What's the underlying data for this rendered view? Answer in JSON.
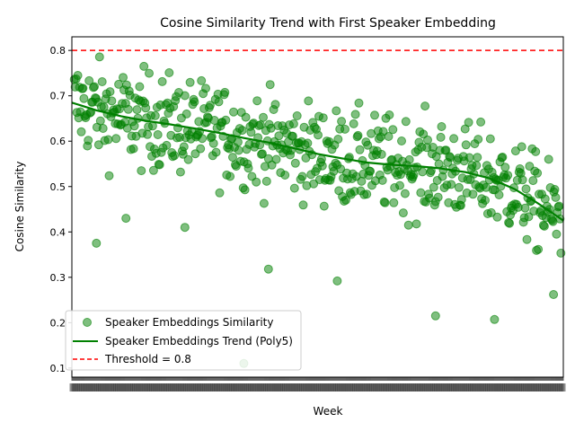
{
  "chart_data": {
    "type": "scatter",
    "title": "Cosine Similarity Trend with First Speaker Embedding",
    "xlabel": "Week",
    "ylabel": "Cosine Similarity",
    "ylim": [
      0.08,
      0.83
    ],
    "yticks": [
      "0.1",
      "0.2",
      "0.3",
      "0.4",
      "0.5",
      "0.6",
      "0.7",
      "0.8"
    ],
    "n_points": 560,
    "grid": false,
    "legend_position": "lower-left",
    "colors": {
      "points": "#008000",
      "trend": "#008000",
      "threshold": "#ff0000"
    },
    "threshold": {
      "value": 0.8,
      "label": "Threshold = 0.8"
    },
    "trend": {
      "name": "Speaker Embeddings Trend (Poly5)",
      "x": [
        0,
        0.05,
        0.1,
        0.15,
        0.2,
        0.25,
        0.3,
        0.35,
        0.4,
        0.45,
        0.5,
        0.55,
        0.6,
        0.65,
        0.7,
        0.75,
        0.8,
        0.85,
        0.9,
        0.95,
        1.0
      ],
      "y": [
        0.685,
        0.668,
        0.655,
        0.645,
        0.637,
        0.628,
        0.618,
        0.607,
        0.597,
        0.585,
        0.572,
        0.562,
        0.553,
        0.548,
        0.545,
        0.54,
        0.532,
        0.518,
        0.495,
        0.462,
        0.425
      ]
    },
    "series": [
      {
        "name": "Speaker Embeddings Similarity",
        "marker": "circle",
        "count": 560
      }
    ],
    "outliers": [
      {
        "x": 0.05,
        "y": 0.375
      },
      {
        "x": 0.11,
        "y": 0.43
      },
      {
        "x": 0.23,
        "y": 0.41
      },
      {
        "x": 0.35,
        "y": 0.11
      },
      {
        "x": 0.4,
        "y": 0.318
      },
      {
        "x": 0.54,
        "y": 0.292
      },
      {
        "x": 0.74,
        "y": 0.215
      },
      {
        "x": 0.86,
        "y": 0.207
      },
      {
        "x": 0.98,
        "y": 0.262
      }
    ]
  }
}
